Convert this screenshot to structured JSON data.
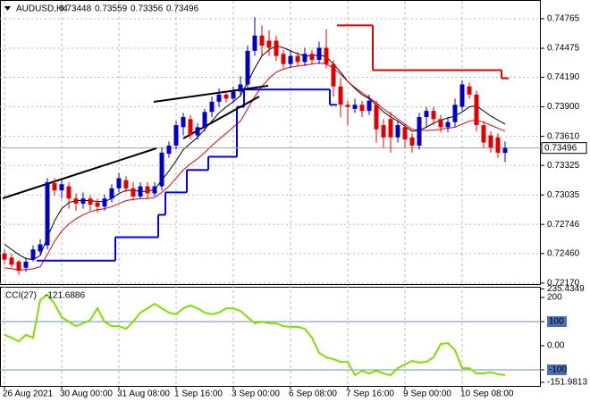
{
  "chart_data": [
    {
      "type": "candlestick",
      "title": "AUDUSD,H4",
      "ylim": [
        0.7216,
        0.7494
      ],
      "yticks": [
        0.74765,
        0.74475,
        {
          "value": 0.7419,
          "label": "0.74190"
        },
        {
          "value": 0.739,
          "label": "0.73900"
        },
        {
          "value": 0.7361,
          "label": "0.73610"
        },
        0.73325,
        0.73035,
        0.72746,
        {
          "value": 0.7246,
          "label": "0.72460"
        },
        {
          "value": 0.7217,
          "label": "0.72170"
        }
      ],
      "grid": true,
      "up_color": "#0000c8",
      "down_color": "#e00000",
      "open": [
        0.7246,
        0.7242,
        0.7238,
        0.7232,
        0.724,
        0.7248,
        0.7254,
        0.7315,
        0.7308,
        0.7312,
        0.73,
        0.7295,
        0.73,
        0.7296,
        0.7292,
        0.73,
        0.731,
        0.7318,
        0.731,
        0.7302,
        0.7312,
        0.7305,
        0.7312,
        0.7344,
        0.7352,
        0.737,
        0.7378,
        0.7362,
        0.737,
        0.7385,
        0.7395,
        0.7402,
        0.7398,
        0.7405,
        0.7412,
        0.7445,
        0.746,
        0.7455,
        0.7455,
        0.7442,
        0.7432,
        0.744,
        0.7434,
        0.7442,
        0.7436,
        0.7448,
        0.7432,
        0.741,
        0.7392,
        0.7388,
        0.7392,
        0.7386,
        0.7392,
        0.7372,
        0.7378,
        0.736,
        0.737,
        0.736,
        0.7352,
        0.738,
        0.7386,
        0.7378,
        0.737,
        0.7375,
        0.739,
        0.741,
        0.7402,
        0.7372,
        0.7362,
        0.736,
        0.73448
      ],
      "high": [
        0.725,
        0.7246,
        0.724,
        0.7242,
        0.7254,
        0.726,
        0.732,
        0.732,
        0.7318,
        0.7316,
        0.7305,
        0.7306,
        0.7303,
        0.73,
        0.7304,
        0.7314,
        0.7325,
        0.7322,
        0.7316,
        0.7316,
        0.7316,
        0.7316,
        0.735,
        0.7356,
        0.7376,
        0.7384,
        0.7382,
        0.7374,
        0.7388,
        0.74,
        0.7408,
        0.7406,
        0.741,
        0.742,
        0.745,
        0.7478,
        0.747,
        0.7465,
        0.746,
        0.7446,
        0.7446,
        0.7444,
        0.7448,
        0.7446,
        0.7454,
        0.7466,
        0.7436,
        0.7418,
        0.7396,
        0.7398,
        0.7396,
        0.7402,
        0.7396,
        0.7378,
        0.7385,
        0.7376,
        0.7374,
        0.7364,
        0.7384,
        0.739,
        0.739,
        0.7382,
        0.738,
        0.7398,
        0.7416,
        0.7414,
        0.7406,
        0.7376,
        0.7366,
        0.7364,
        0.73559
      ],
      "low": [
        0.7236,
        0.7232,
        0.7225,
        0.7228,
        0.7238,
        0.7245,
        0.725,
        0.7303,
        0.73,
        0.729,
        0.7288,
        0.729,
        0.7288,
        0.7286,
        0.7288,
        0.7296,
        0.7306,
        0.7306,
        0.7298,
        0.73,
        0.73,
        0.7302,
        0.7308,
        0.734,
        0.7348,
        0.7362,
        0.7358,
        0.7358,
        0.7366,
        0.738,
        0.739,
        0.7394,
        0.7394,
        0.74,
        0.7408,
        0.744,
        0.744,
        0.744,
        0.7435,
        0.7428,
        0.7428,
        0.743,
        0.743,
        0.7432,
        0.7432,
        0.7428,
        0.74,
        0.738,
        0.7372,
        0.7384,
        0.738,
        0.7382,
        0.7355,
        0.735,
        0.7345,
        0.7355,
        0.735,
        0.7345,
        0.7348,
        0.737,
        0.7372,
        0.7365,
        0.7365,
        0.737,
        0.7386,
        0.7398,
        0.7366,
        0.735,
        0.7345,
        0.734,
        0.73356
      ],
      "close": [
        0.724,
        0.7235,
        0.7229,
        0.7238,
        0.725,
        0.7255,
        0.7316,
        0.7308,
        0.7314,
        0.73,
        0.7295,
        0.73,
        0.7294,
        0.7292,
        0.73,
        0.731,
        0.732,
        0.731,
        0.7302,
        0.7312,
        0.7305,
        0.7312,
        0.7345,
        0.7352,
        0.7372,
        0.738,
        0.7362,
        0.737,
        0.7385,
        0.7395,
        0.7402,
        0.7398,
        0.7405,
        0.7412,
        0.7445,
        0.746,
        0.745,
        0.7448,
        0.744,
        0.7432,
        0.744,
        0.7434,
        0.7442,
        0.7436,
        0.7448,
        0.7432,
        0.741,
        0.7392,
        0.739,
        0.7392,
        0.7386,
        0.7396,
        0.7368,
        0.736,
        0.736,
        0.7372,
        0.7358,
        0.7352,
        0.738,
        0.7386,
        0.7378,
        0.737,
        0.7375,
        0.7392,
        0.7412,
        0.7402,
        0.7372,
        0.7355,
        0.735,
        0.7345,
        0.73496
      ],
      "series": [
        {
          "color": "#000000",
          "values": [
            0.7255,
            0.725,
            0.7245,
            0.7241,
            0.724,
            0.7244,
            0.7262,
            0.7278,
            0.729,
            0.7296,
            0.7298,
            0.7298,
            0.7298,
            0.7297,
            0.7297,
            0.73,
            0.7305,
            0.7308,
            0.7308,
            0.7307,
            0.7307,
            0.7309,
            0.7318,
            0.7327,
            0.7337,
            0.7348,
            0.7354,
            0.736,
            0.7368,
            0.7376,
            0.7384,
            0.739,
            0.7395,
            0.7401,
            0.7414,
            0.7428,
            0.744,
            0.7446,
            0.745,
            0.7448,
            0.7445,
            0.7442,
            0.744,
            0.744,
            0.7441,
            0.7439,
            0.7432,
            0.7424,
            0.7415,
            0.7408,
            0.7402,
            0.7398,
            0.7392,
            0.7385,
            0.738,
            0.7376,
            0.7371,
            0.7366,
            0.7367,
            0.737,
            0.7374,
            0.7377,
            0.7379,
            0.7381,
            0.7385,
            0.739,
            0.7391,
            0.7386,
            0.7381,
            0.7377,
            0.7373
          ]
        },
        {
          "color": "#e00000",
          "values": [
            0.7232,
            0.7231,
            0.723,
            0.723,
            0.7231,
            0.7233,
            0.7245,
            0.7258,
            0.7268,
            0.7275,
            0.728,
            0.7284,
            0.7287,
            0.7289,
            0.729,
            0.7292,
            0.7295,
            0.7298,
            0.7299,
            0.73,
            0.73,
            0.7301,
            0.7306,
            0.7312,
            0.732,
            0.7328,
            0.7334,
            0.7339,
            0.7345,
            0.7352,
            0.7358,
            0.7364,
            0.737,
            0.7376,
            0.7388,
            0.74,
            0.741,
            0.7418,
            0.7424,
            0.7427,
            0.7429,
            0.743,
            0.7431,
            0.7432,
            0.7433,
            0.7432,
            0.7428,
            0.7422,
            0.7415,
            0.7409,
            0.7404,
            0.7399,
            0.7394,
            0.7388,
            0.7383,
            0.7378,
            0.7373,
            0.7368,
            0.7367,
            0.7367,
            0.7367,
            0.7368,
            0.7369,
            0.737,
            0.7373,
            0.7376,
            0.7377,
            0.7375,
            0.7372,
            0.7369,
            0.7366
          ]
        },
        {
          "color": "#0000ff",
          "step": true,
          "values": [
            null,
            null,
            null,
            null,
            null,
            0.7239,
            0.7239,
            0.7239,
            0.7239,
            0.7239,
            0.7239,
            0.7239,
            0.7239,
            0.7239,
            0.7239,
            0.7239,
            0.7262,
            0.7262,
            0.7262,
            0.7262,
            0.7262,
            0.7262,
            0.7284,
            0.7306,
            0.7306,
            0.7306,
            0.7328,
            0.7328,
            0.7328,
            0.7341,
            0.7341,
            0.7341,
            0.7341,
            0.739,
            0.7407,
            0.7407,
            0.7407,
            0.7407,
            0.7407,
            0.7407,
            0.7407,
            0.7407,
            0.7407,
            0.7407,
            0.7407,
            0.7407,
            0.7392,
            null,
            null,
            null,
            null,
            null,
            null,
            null,
            null,
            null,
            null,
            null,
            null,
            null,
            null,
            null,
            null,
            null,
            null,
            null,
            null,
            null,
            null,
            null,
            null
          ]
        },
        {
          "color": "#e00000",
          "step": true,
          "values": [
            null,
            null,
            null,
            null,
            null,
            null,
            null,
            null,
            null,
            null,
            null,
            null,
            null,
            null,
            null,
            null,
            null,
            null,
            null,
            null,
            null,
            null,
            null,
            null,
            null,
            null,
            null,
            null,
            null,
            null,
            null,
            null,
            null,
            null,
            null,
            null,
            null,
            null,
            null,
            null,
            null,
            null,
            null,
            null,
            null,
            null,
            null,
            0.747,
            0.747,
            0.747,
            0.747,
            0.747,
            0.7426,
            0.7426,
            0.7426,
            0.7426,
            0.7426,
            0.7426,
            0.7426,
            0.7426,
            0.7426,
            0.7426,
            0.7426,
            0.7426,
            0.7426,
            0.7426,
            0.7426,
            0.7426,
            0.7426,
            0.7426,
            0.7418
          ]
        }
      ]
    },
    {
      "type": "line",
      "title": "CCI(27)",
      "color": "#7fe000",
      "ylim": [
        -166.7,
        240.7
      ],
      "yticks": [
        235.4349,
        200,
        100,
        {
          "value": 0,
          "label": "0.00"
        },
        -100,
        -151.9813
      ],
      "levels": [
        100,
        -100
      ],
      "categories": [
        "26 Aug 2021",
        null,
        null,
        null,
        null,
        null,
        null,
        null,
        "30 Aug 00:00",
        null,
        null,
        null,
        null,
        null,
        null,
        null,
        "31 Aug 08:00",
        null,
        null,
        null,
        null,
        null,
        null,
        null,
        "1 Sep 16:00",
        null,
        null,
        null,
        null,
        null,
        null,
        null,
        "3 Sep 00:00",
        null,
        null,
        null,
        null,
        null,
        null,
        null,
        "6 Sep 08:00",
        null,
        null,
        null,
        null,
        null,
        null,
        null,
        "7 Sep 16:00",
        null,
        null,
        null,
        null,
        null,
        null,
        null,
        "9 Sep 00:00",
        null,
        null,
        null,
        null,
        null,
        null,
        null,
        "10 Sep 08:00",
        null,
        null,
        null,
        null,
        null,
        null
      ],
      "values": [
        45,
        33,
        18,
        45,
        33,
        190,
        211,
        174,
        118,
        100,
        81,
        93,
        107,
        155,
        100,
        81,
        81,
        70,
        100,
        137,
        155,
        174,
        155,
        137,
        130,
        155,
        167,
        155,
        137,
        130,
        137,
        155,
        155,
        144,
        118,
        93,
        100,
        93,
        93,
        81,
        78,
        78,
        70,
        33,
        -30,
        -48,
        -56,
        -67,
        -67,
        -122,
        -104,
        -115,
        -104,
        -115,
        -122,
        -93,
        -78,
        -63,
        -70,
        -67,
        -48,
        7,
        11,
        -19,
        -93,
        -93,
        -115,
        -115,
        -110,
        -118,
        -121.6886
      ]
    }
  ]
}
